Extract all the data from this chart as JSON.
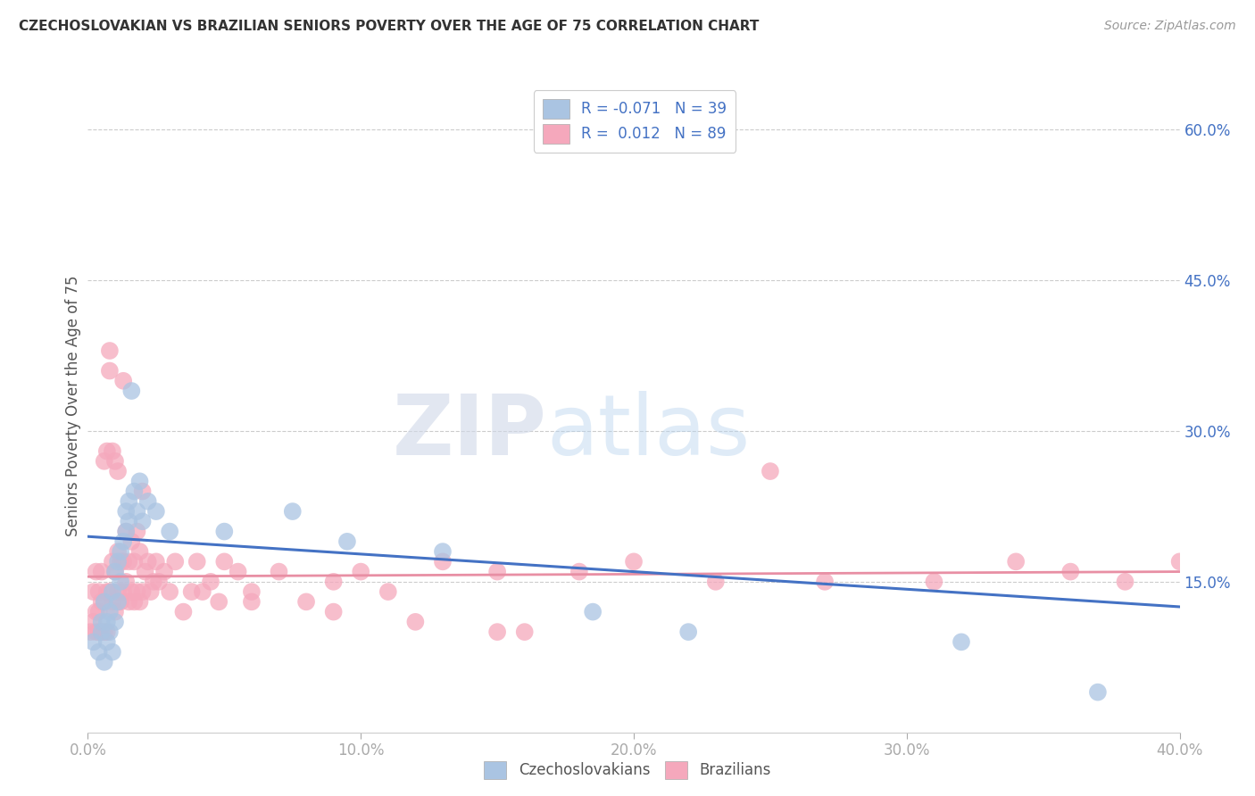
{
  "title": "CZECHOSLOVAKIAN VS BRAZILIAN SENIORS POVERTY OVER THE AGE OF 75 CORRELATION CHART",
  "source": "Source: ZipAtlas.com",
  "ylabel": "Seniors Poverty Over the Age of 75",
  "xlim": [
    0.0,
    0.4
  ],
  "ylim": [
    0.0,
    0.65
  ],
  "xticks": [
    0.0,
    0.1,
    0.2,
    0.3,
    0.4
  ],
  "xtick_labels": [
    "0.0%",
    "10.0%",
    "20.0%",
    "30.0%",
    "40.0%"
  ],
  "yticks": [
    0.0,
    0.15,
    0.3,
    0.45,
    0.6
  ],
  "ytick_labels_right": [
    "",
    "15.0%",
    "30.0%",
    "45.0%",
    "60.0%"
  ],
  "czecho_color": "#aac4e2",
  "brazil_color": "#f5a8bc",
  "czecho_line_color": "#4472c4",
  "brazil_line_color": "#e88fa4",
  "czecho_R": -0.071,
  "czecho_N": 39,
  "brazil_R": 0.012,
  "brazil_N": 89,
  "legend_label_czecho": "Czechoslovakians",
  "legend_label_brazil": "Brazilians",
  "background_color": "#ffffff",
  "watermark_zip": "ZIP",
  "watermark_atlas": "atlas",
  "czecho_x": [
    0.002,
    0.004,
    0.005,
    0.005,
    0.006,
    0.006,
    0.007,
    0.007,
    0.008,
    0.008,
    0.009,
    0.009,
    0.01,
    0.01,
    0.011,
    0.011,
    0.012,
    0.012,
    0.013,
    0.014,
    0.014,
    0.015,
    0.015,
    0.016,
    0.017,
    0.018,
    0.019,
    0.02,
    0.022,
    0.025,
    0.03,
    0.05,
    0.075,
    0.095,
    0.13,
    0.185,
    0.22,
    0.32,
    0.37
  ],
  "czecho_y": [
    0.09,
    0.08,
    0.1,
    0.11,
    0.07,
    0.13,
    0.09,
    0.11,
    0.1,
    0.12,
    0.08,
    0.14,
    0.11,
    0.16,
    0.13,
    0.17,
    0.15,
    0.18,
    0.19,
    0.2,
    0.22,
    0.21,
    0.23,
    0.34,
    0.24,
    0.22,
    0.25,
    0.21,
    0.23,
    0.22,
    0.2,
    0.2,
    0.22,
    0.19,
    0.18,
    0.12,
    0.1,
    0.09,
    0.04
  ],
  "brazil_x": [
    0.001,
    0.002,
    0.002,
    0.003,
    0.003,
    0.003,
    0.004,
    0.004,
    0.004,
    0.005,
    0.005,
    0.005,
    0.006,
    0.006,
    0.006,
    0.007,
    0.007,
    0.007,
    0.008,
    0.008,
    0.008,
    0.009,
    0.009,
    0.009,
    0.01,
    0.01,
    0.01,
    0.011,
    0.011,
    0.011,
    0.012,
    0.012,
    0.013,
    0.013,
    0.013,
    0.014,
    0.014,
    0.015,
    0.015,
    0.016,
    0.016,
    0.017,
    0.017,
    0.018,
    0.018,
    0.019,
    0.019,
    0.02,
    0.02,
    0.021,
    0.022,
    0.023,
    0.024,
    0.025,
    0.026,
    0.028,
    0.03,
    0.032,
    0.035,
    0.038,
    0.04,
    0.042,
    0.045,
    0.048,
    0.05,
    0.055,
    0.06,
    0.07,
    0.08,
    0.09,
    0.1,
    0.11,
    0.13,
    0.15,
    0.18,
    0.2,
    0.23,
    0.27,
    0.31,
    0.34,
    0.36,
    0.38,
    0.4,
    0.25,
    0.15,
    0.12,
    0.16,
    0.09,
    0.06
  ],
  "brazil_y": [
    0.1,
    0.11,
    0.14,
    0.1,
    0.12,
    0.16,
    0.1,
    0.12,
    0.14,
    0.1,
    0.13,
    0.16,
    0.1,
    0.13,
    0.27,
    0.1,
    0.14,
    0.28,
    0.36,
    0.38,
    0.14,
    0.13,
    0.17,
    0.28,
    0.12,
    0.16,
    0.27,
    0.14,
    0.18,
    0.26,
    0.13,
    0.17,
    0.14,
    0.17,
    0.35,
    0.15,
    0.2,
    0.13,
    0.17,
    0.14,
    0.19,
    0.13,
    0.17,
    0.14,
    0.2,
    0.13,
    0.18,
    0.14,
    0.24,
    0.16,
    0.17,
    0.14,
    0.15,
    0.17,
    0.15,
    0.16,
    0.14,
    0.17,
    0.12,
    0.14,
    0.17,
    0.14,
    0.15,
    0.13,
    0.17,
    0.16,
    0.14,
    0.16,
    0.13,
    0.15,
    0.16,
    0.14,
    0.17,
    0.16,
    0.16,
    0.17,
    0.15,
    0.15,
    0.15,
    0.17,
    0.16,
    0.15,
    0.17,
    0.26,
    0.1,
    0.11,
    0.1,
    0.12,
    0.13
  ],
  "czecho_trend_start": 0.195,
  "czecho_trend_end": 0.125,
  "brazil_trend_start": 0.155,
  "brazil_trend_end": 0.16
}
